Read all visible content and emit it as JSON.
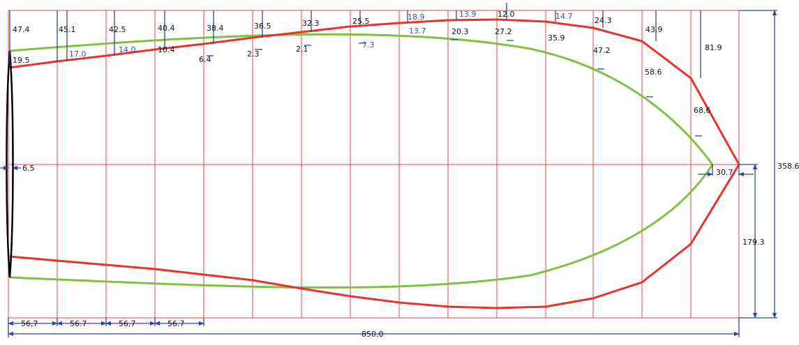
{
  "colors": {
    "grid": "#e8433f",
    "outer_curve": "#e8332a",
    "inner_curve": "#7ec242",
    "dimension": "#2f42a8",
    "edge": "#000000",
    "black_text": "#111111",
    "blue_text": "#3a4fb8"
  },
  "stations": {
    "count": 15,
    "spacing_labels": [
      "56,7",
      "56.7",
      "56,7",
      "56.7"
    ],
    "total_length_label": "850.0",
    "total_width_label": "358.6",
    "half_width_label": "179.3",
    "tip_offset_label": "30.7",
    "left_offset_label": "6.5"
  },
  "outer_top_offsets": [
    "47.4",
    "45.1",
    "42.5",
    "40.4",
    "38.4",
    "36.5",
    "32.3",
    "25.5",
    "18.9",
    "13.9",
    "12.0",
    "14.7",
    "24.3",
    "43.9",
    "81.9"
  ],
  "inner_top_gaps_blue": [
    "17.0",
    "14.0",
    "7.3",
    "13.7"
  ],
  "inner_top_gaps_black": [
    "19.5",
    "10.4",
    "6.4",
    "2.3",
    "2.1",
    "20.3",
    "27.2",
    "35.9",
    "47.2",
    "58.6",
    "68.6"
  ]
}
